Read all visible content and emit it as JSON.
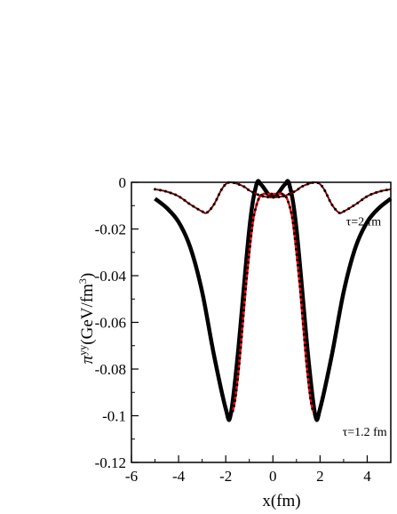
{
  "chart_data": {
    "type": "line",
    "title": "",
    "xlabel": "x(fm)",
    "ylabel": {
      "main": "π",
      "sup1": "yy",
      "unit": "(GeV/fm",
      "sup2": "3",
      "close": ")"
    },
    "xlim": [
      -6,
      5
    ],
    "ylim": [
      -0.12,
      0
    ],
    "x_ticks": [
      -6,
      -4,
      -2,
      0,
      2,
      4
    ],
    "x_tick_labels": [
      "-6",
      "-4",
      "-2",
      "0",
      "2",
      "4"
    ],
    "y_ticks": [
      0,
      -0.02,
      -0.04,
      -0.06,
      -0.08,
      -0.1,
      -0.12
    ],
    "y_tick_labels": [
      "0",
      "-0.02",
      "-0.04",
      "-0.06",
      "-0.08",
      "-0.1",
      "-0.12"
    ],
    "grid": false,
    "annotations": [
      {
        "text": "τ=2 fm",
        "x": 3.1,
        "y": -0.0185
      },
      {
        "text": "τ=1.2 fm",
        "x": 2.95,
        "y": -0.1085
      }
    ],
    "series": [
      {
        "color": "#000000",
        "style": "thick-line",
        "x": [
          -5.0,
          -4.5,
          -4.0,
          -3.5,
          -3.0,
          -2.5,
          -2.0,
          -1.8,
          -1.5,
          -1.0,
          -0.7,
          -0.5,
          -0.2,
          0.0,
          0.2,
          0.5,
          0.7,
          1.0,
          1.5,
          1.8,
          2.0,
          2.5,
          3.0,
          3.5,
          4.0,
          4.5,
          5.0
        ],
        "y": [
          -0.007,
          -0.011,
          -0.017,
          -0.028,
          -0.047,
          -0.074,
          -0.097,
          -0.1,
          -0.075,
          -0.02,
          -0.001,
          -0.001,
          -0.005,
          -0.006,
          -0.005,
          -0.001,
          -0.001,
          -0.02,
          -0.075,
          -0.1,
          -0.097,
          -0.074,
          -0.047,
          -0.028,
          -0.017,
          -0.011,
          -0.007
        ]
      },
      {
        "color": "#ff0000",
        "style": "line",
        "x": [
          -1.7,
          -1.6,
          -1.45,
          -1.3,
          -1.15,
          -1.0,
          -0.9,
          -0.8,
          -0.6,
          -0.4,
          -0.2,
          0.0,
          0.2,
          0.4,
          0.6,
          0.8,
          0.9,
          1.0,
          1.15,
          1.3,
          1.45,
          1.6,
          1.7
        ],
        "y": [
          -0.098,
          -0.093,
          -0.08,
          -0.063,
          -0.045,
          -0.03,
          -0.021,
          -0.014,
          -0.007,
          -0.005,
          -0.005,
          -0.005,
          -0.005,
          -0.005,
          -0.007,
          -0.014,
          -0.021,
          -0.03,
          -0.045,
          -0.063,
          -0.08,
          -0.093,
          -0.098
        ]
      },
      {
        "color": "#8b0000",
        "style": "dotted",
        "x": [
          -5.0,
          -4.5,
          -4.0,
          -3.5,
          -3.0,
          -2.8,
          -2.5,
          -2.2,
          -2.0,
          -1.8,
          -1.5,
          -1.2,
          -1.0,
          -0.7,
          -0.5,
          -0.3,
          0.0,
          0.3,
          0.5,
          0.7,
          1.0,
          1.2,
          1.5,
          1.8,
          2.0,
          2.2,
          2.5,
          2.8,
          3.0,
          3.5,
          4.0,
          4.5,
          5.0
        ],
        "y": [
          -0.003,
          -0.004,
          -0.006,
          -0.0095,
          -0.0125,
          -0.013,
          -0.0095,
          -0.0035,
          -0.0008,
          0.0,
          -0.0007,
          -0.002,
          -0.0035,
          -0.005,
          -0.0058,
          -0.0062,
          -0.0065,
          -0.0062,
          -0.0058,
          -0.005,
          -0.0035,
          -0.002,
          -0.0007,
          0.0,
          -0.0008,
          -0.0035,
          -0.0095,
          -0.013,
          -0.0125,
          -0.0095,
          -0.006,
          -0.004,
          -0.003
        ]
      }
    ]
  }
}
